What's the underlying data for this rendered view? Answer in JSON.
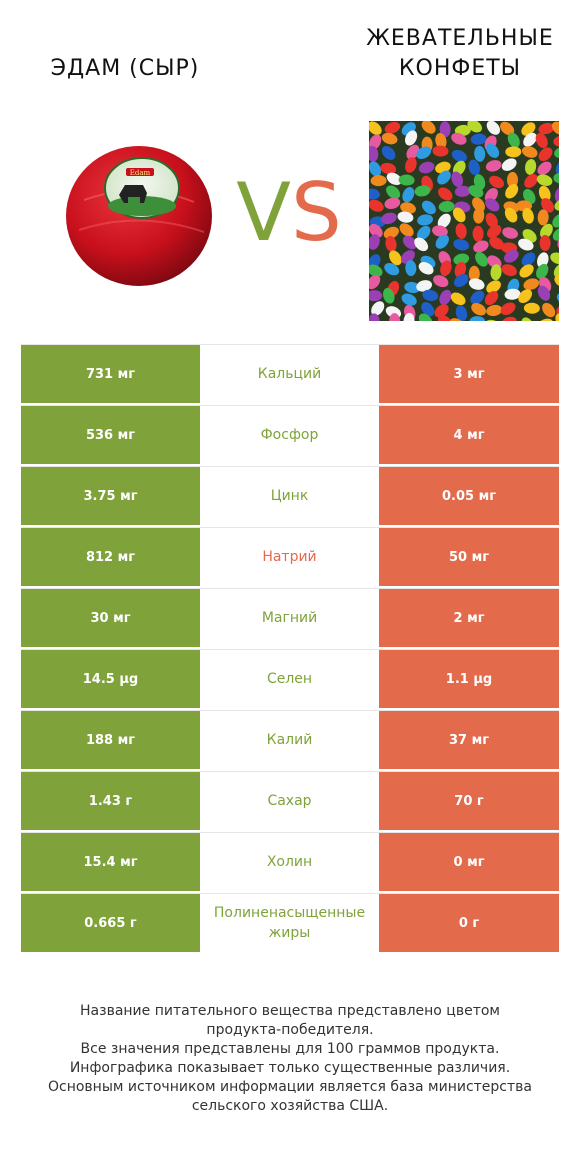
{
  "left_product": {
    "name": "ЭДАМ (СЫР)",
    "color": "#7fa33a"
  },
  "right_product": {
    "name_line1": "ЖЕВАТЕЛЬНЫЕ",
    "name_line2": "КОНФЕТЫ",
    "color": "#e46a4c"
  },
  "vs": {
    "v": "V",
    "s": "S"
  },
  "cheese_label": "Edam",
  "rows": [
    {
      "left": "731 мг",
      "nutrient": "Кальций",
      "right": "3 мг",
      "winner": "left"
    },
    {
      "left": "536 мг",
      "nutrient": "Фосфор",
      "right": "4 мг",
      "winner": "left"
    },
    {
      "left": "3.75 мг",
      "nutrient": "Цинк",
      "right": "0.05 мг",
      "winner": "left"
    },
    {
      "left": "812 мг",
      "nutrient": "Натрий",
      "right": "50 мг",
      "winner": "right"
    },
    {
      "left": "30 мг",
      "nutrient": "Магний",
      "right": "2 мг",
      "winner": "left"
    },
    {
      "left": "14.5 µg",
      "nutrient": "Селен",
      "right": "1.1 µg",
      "winner": "left"
    },
    {
      "left": "188 мг",
      "nutrient": "Калий",
      "right": "37 мг",
      "winner": "left"
    },
    {
      "left": "1.43 г",
      "nutrient": "Сахар",
      "right": "70 г",
      "winner": "left"
    },
    {
      "left": "15.4 мг",
      "nutrient": "Холин",
      "right": "0 мг",
      "winner": "left"
    },
    {
      "left": "0.665 г",
      "nutrient": "Полиненасыщенные жиры",
      "right": "0 г",
      "winner": "left"
    }
  ],
  "footer": [
    "Название питательного вещества представлено цветом",
    "продукта-победителя.",
    "Все значения представлены для 100 граммов продукта.",
    "Инфографика показывает только существенные различия.",
    "Основным источником информации является база министерства",
    "сельского хозяйства США."
  ]
}
